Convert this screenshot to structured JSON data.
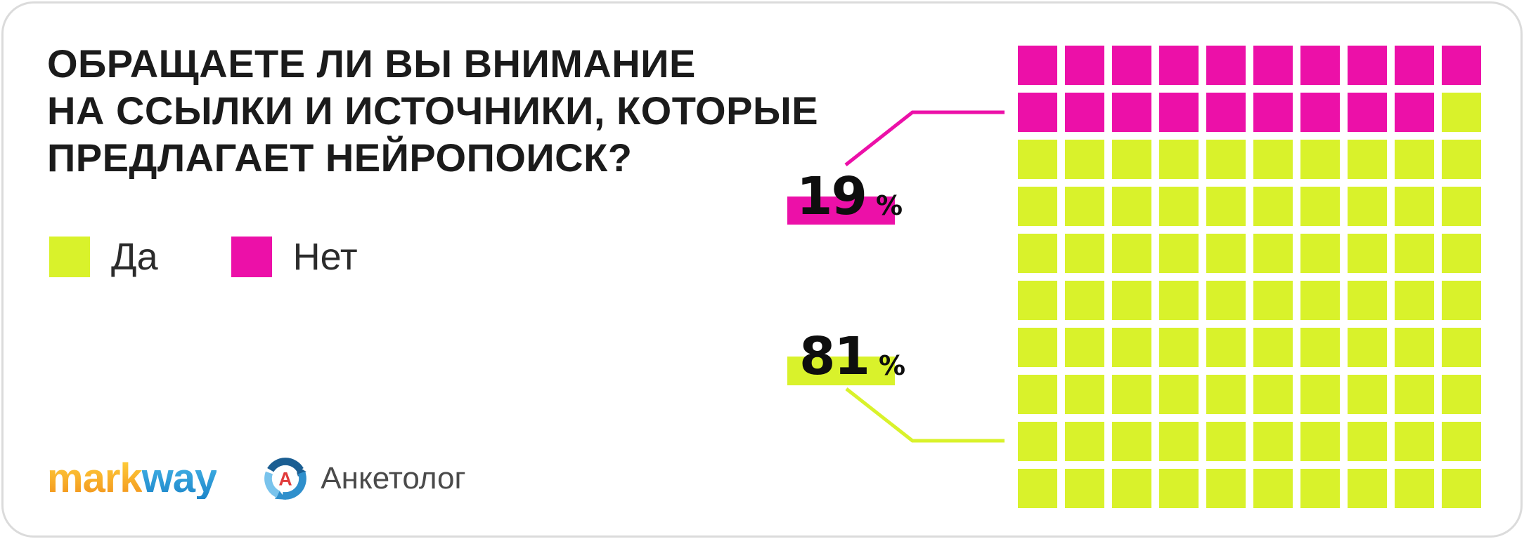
{
  "title": {
    "lines": [
      "ОБРАЩАЕТЕ ЛИ ВЫ ВНИМАНИЕ",
      "НА ССЫЛКИ И ИСТОЧНИКИ, КОТОРЫЕ",
      "ПРЕДЛАГАЕТ НЕЙРОПОИСК?"
    ]
  },
  "legend": {
    "items": [
      {
        "label": "Да",
        "color": "#D9F22B"
      },
      {
        "label": "Нет",
        "color": "#EC10A8"
      }
    ]
  },
  "labels": {
    "no": {
      "value": "19",
      "unit": "%"
    },
    "yes": {
      "value": "81",
      "unit": "%"
    }
  },
  "chart_data": {
    "type": "waffle",
    "title": "ОБРАЩАЕТЕ ЛИ ВЫ ВНИМАНИЕ НА ССЫЛКИ И ИСТОЧНИКИ, КОТОРЫЕ ПРЕДЛАГАЕТ НЕЙРОПОИСК?",
    "categories": [
      "Да",
      "Нет"
    ],
    "values": [
      81,
      19
    ],
    "unit": "%",
    "series_colors": {
      "Да": "#D9F22B",
      "Нет": "#EC10A8"
    },
    "grid": {
      "rows": 10,
      "cols": 10,
      "fill_order": "Нет fills top rows left-to-right, Да fills the remainder"
    },
    "legend_position": "top-left",
    "annotations": [
      {
        "text": "19 %",
        "points_to": "magenta cells (rows 1-2)"
      },
      {
        "text": "81 %",
        "points_to": "lime cells (rows 3-10)"
      }
    ]
  },
  "footer": {
    "markway": {
      "part1": "mark",
      "part2": "way"
    },
    "anketolog": {
      "name": "Анкетолог",
      "letter": "А"
    }
  },
  "colors": {
    "yes": "#D9F22B",
    "no": "#EC10A8",
    "title_text": "#1B1B1B",
    "legend_text": "#2B2B2B",
    "number_text": "#0E0E0E",
    "border": "#DBDBDB",
    "markway_orange_top": "#FFD03C",
    "markway_orange_bottom": "#F2921B",
    "markway_blue_top": "#47B7E9",
    "markway_blue_bottom": "#1C85C9",
    "anketolog_blue_dark": "#1B5E92",
    "anketolog_blue_mid": "#2F8FCC",
    "anketolog_blue_light": "#79C3EC",
    "anketolog_red": "#E13B3B",
    "anketolog_text": "#4A4A4A"
  }
}
